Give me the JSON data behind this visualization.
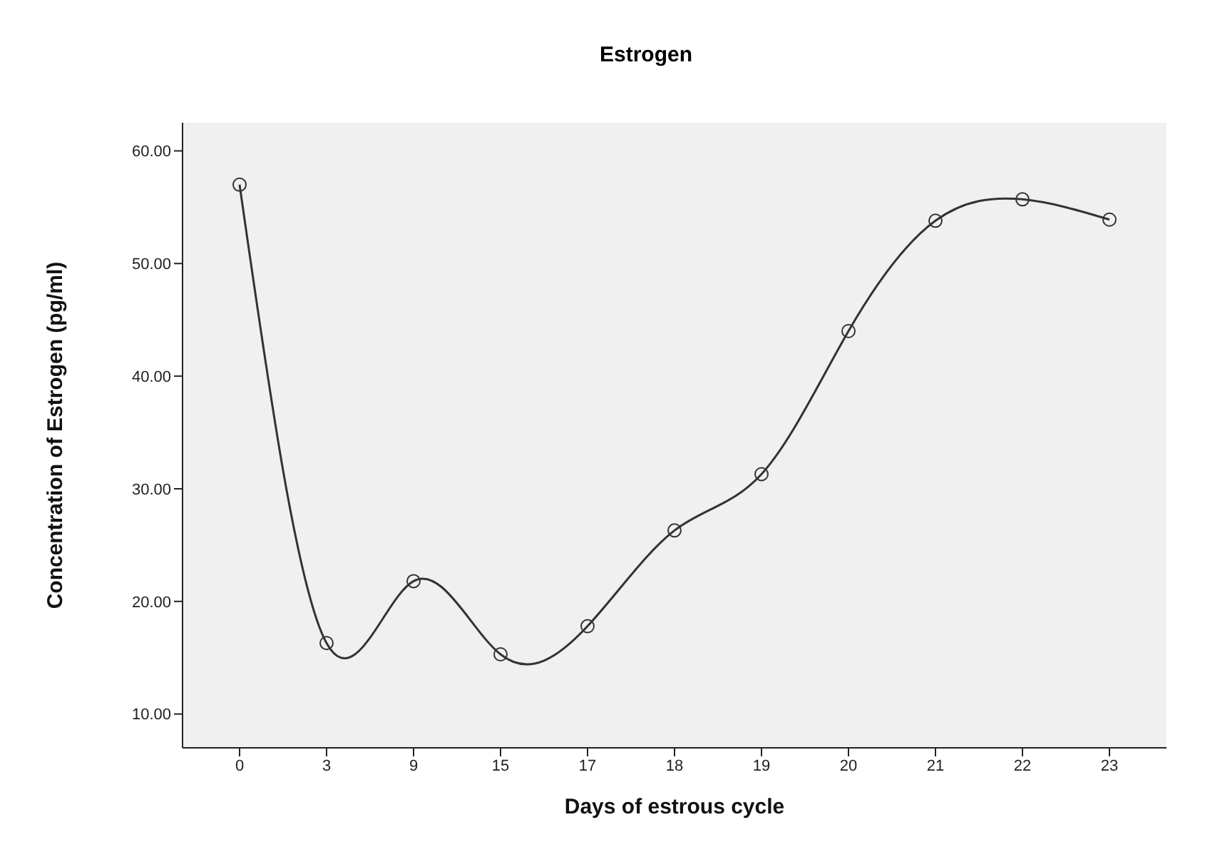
{
  "chart_data": {
    "type": "line",
    "title": "Estrogen",
    "xlabel": "Days of estrous cycle",
    "ylabel": "Concentration of Estrogen (pg/ml)",
    "categories": [
      "0",
      "3",
      "9",
      "15",
      "17",
      "18",
      "19",
      "20",
      "21",
      "22",
      "23"
    ],
    "series": [
      {
        "color": "#333333",
        "values": [
          57.0,
          16.3,
          21.8,
          15.3,
          17.8,
          26.3,
          31.3,
          44.0,
          53.8,
          55.7,
          53.9
        ]
      }
    ],
    "ylim": [
      7,
      62.5
    ],
    "yticks": [
      {
        "value": 10,
        "label": "10.00"
      },
      {
        "value": 20,
        "label": "20.00"
      },
      {
        "value": 30,
        "label": "30.00"
      },
      {
        "value": 40,
        "label": "40.00"
      },
      {
        "value": 50,
        "label": "50.00"
      },
      {
        "value": 60,
        "label": "60.00"
      }
    ],
    "grid": false,
    "legend": false,
    "marker": "circle",
    "line_style": "solid"
  }
}
